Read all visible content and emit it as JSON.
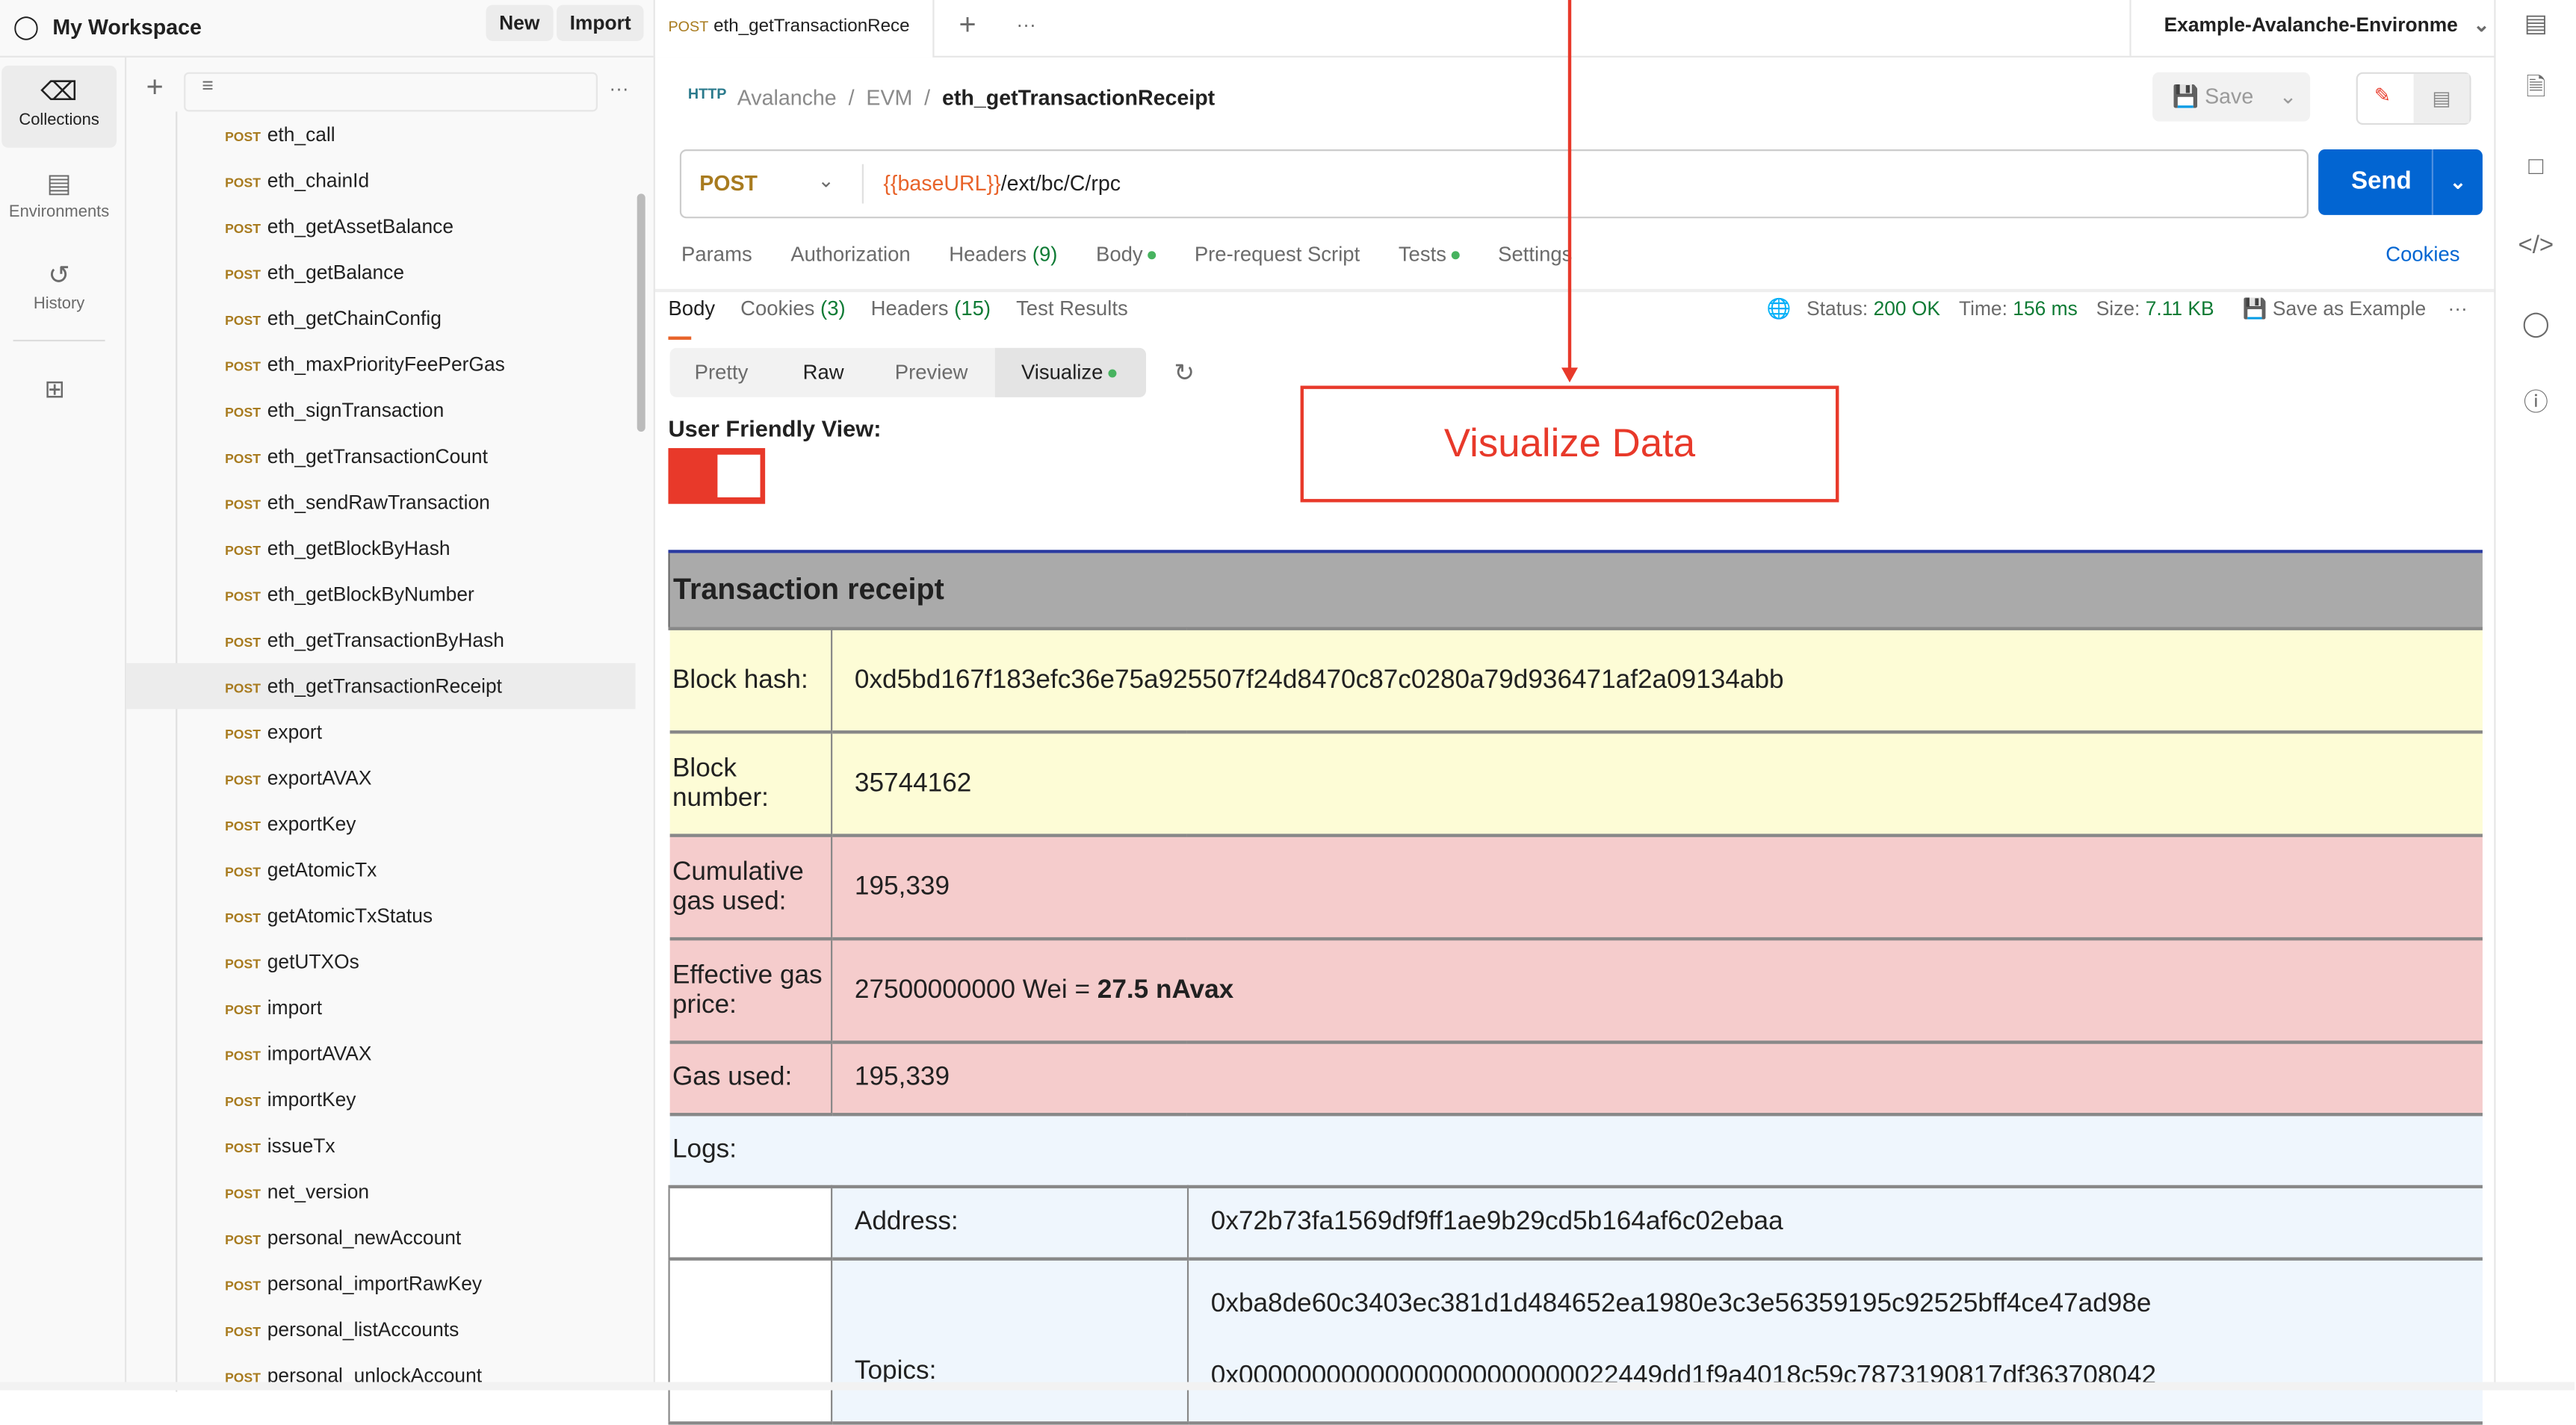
{
  "workspace": {
    "title": "My Workspace",
    "new_label": "New",
    "import_label": "Import"
  },
  "rail": [
    {
      "label": "Collections",
      "icon": "collections-icon"
    },
    {
      "label": "Environments",
      "icon": "environments-icon"
    },
    {
      "label": "History",
      "icon": "history-icon"
    }
  ],
  "requests": [
    {
      "m": "POST",
      "n": "eth_call"
    },
    {
      "m": "POST",
      "n": "eth_chainId"
    },
    {
      "m": "POST",
      "n": "eth_getAssetBalance"
    },
    {
      "m": "POST",
      "n": "eth_getBalance"
    },
    {
      "m": "POST",
      "n": "eth_getChainConfig"
    },
    {
      "m": "POST",
      "n": "eth_maxPriorityFeePerGas"
    },
    {
      "m": "POST",
      "n": "eth_signTransaction"
    },
    {
      "m": "POST",
      "n": "eth_getTransactionCount"
    },
    {
      "m": "POST",
      "n": "eth_sendRawTransaction"
    },
    {
      "m": "POST",
      "n": "eth_getBlockByHash"
    },
    {
      "m": "POST",
      "n": "eth_getBlockByNumber"
    },
    {
      "m": "POST",
      "n": "eth_getTransactionByHash"
    },
    {
      "m": "POST",
      "n": "eth_getTransactionReceipt"
    },
    {
      "m": "POST",
      "n": "export"
    },
    {
      "m": "POST",
      "n": "exportAVAX"
    },
    {
      "m": "POST",
      "n": "exportKey"
    },
    {
      "m": "POST",
      "n": "getAtomicTx"
    },
    {
      "m": "POST",
      "n": "getAtomicTxStatus"
    },
    {
      "m": "POST",
      "n": "getUTXOs"
    },
    {
      "m": "POST",
      "n": "import"
    },
    {
      "m": "POST",
      "n": "importAVAX"
    },
    {
      "m": "POST",
      "n": "importKey"
    },
    {
      "m": "POST",
      "n": "issueTx"
    },
    {
      "m": "POST",
      "n": "net_version"
    },
    {
      "m": "POST",
      "n": "personal_newAccount"
    },
    {
      "m": "POST",
      "n": "personal_importRawKey"
    },
    {
      "m": "POST",
      "n": "personal_listAccounts"
    },
    {
      "m": "POST",
      "n": "personal_unlockAccount"
    }
  ],
  "tab": {
    "method": "POST",
    "name": "eth_getTransactionRece"
  },
  "environment": "Example-Avalanche-Environme",
  "breadcrumb": [
    "Avalanche",
    "EVM",
    "eth_getTransactionReceipt"
  ],
  "save_label": "Save",
  "request": {
    "method": "POST",
    "url_var": "{{baseURL}}",
    "url_path": "/ext/bc/C/rpc",
    "send_label": "Send"
  },
  "req_tabs": {
    "params": "Params",
    "auth": "Authorization",
    "headers": "Headers",
    "headers_count": "(9)",
    "body": "Body",
    "prereq": "Pre-request Script",
    "tests": "Tests",
    "settings": "Settings",
    "cookies": "Cookies"
  },
  "resp_tabs": {
    "body": "Body",
    "cookies": "Cookies",
    "cookies_count": "(3)",
    "headers": "Headers",
    "headers_count": "(15)",
    "tests": "Test Results"
  },
  "status": {
    "status_label": "Status:",
    "status": "200 OK",
    "time_label": "Time:",
    "time": "156 ms",
    "size_label": "Size:",
    "size": "7.11 KB",
    "save_example": "Save as Example"
  },
  "views": [
    "Pretty",
    "Raw",
    "Preview",
    "Visualize"
  ],
  "toggle_label": "User Friendly View:",
  "annotation": "Visualize Data",
  "receipt": {
    "title": "Transaction receipt",
    "block_hash_label": "Block hash:",
    "block_hash": "0xd5bd167f183efc36e75a925507f24d8470c87c0280a79d936471af2a09134abb",
    "block_number_label": "Block number:",
    "block_number": "35744162",
    "cum_gas_label": "Cumulative gas used:",
    "cum_gas": "195,339",
    "eff_price_label": "Effective gas price:",
    "eff_price": "27500000000 Wei = ",
    "eff_price_bold": "27.5 nAvax",
    "gas_used_label": "Gas used:",
    "gas_used": "195,339",
    "logs_label": "Logs:",
    "address_label": "Address:",
    "address": "0x72b73fa1569df9ff1ae9b29cd5b164af6c02ebaa",
    "topics_label": "Topics:",
    "topics": [
      "0xba8de60c3403ec381d1d484652ea1980e3c3e56359195c92525bff4ce47ad98e",
      "0x00000000000000000000000022449dd1f9a4018c59c7873190817df363708042"
    ]
  },
  "colors": {
    "accent": "#0265d2",
    "method": "#a87b1f",
    "annotation": "#e8392a",
    "yellow": "#fdfcd6",
    "red": "#f5cccc",
    "blue": "#eff6fd"
  }
}
